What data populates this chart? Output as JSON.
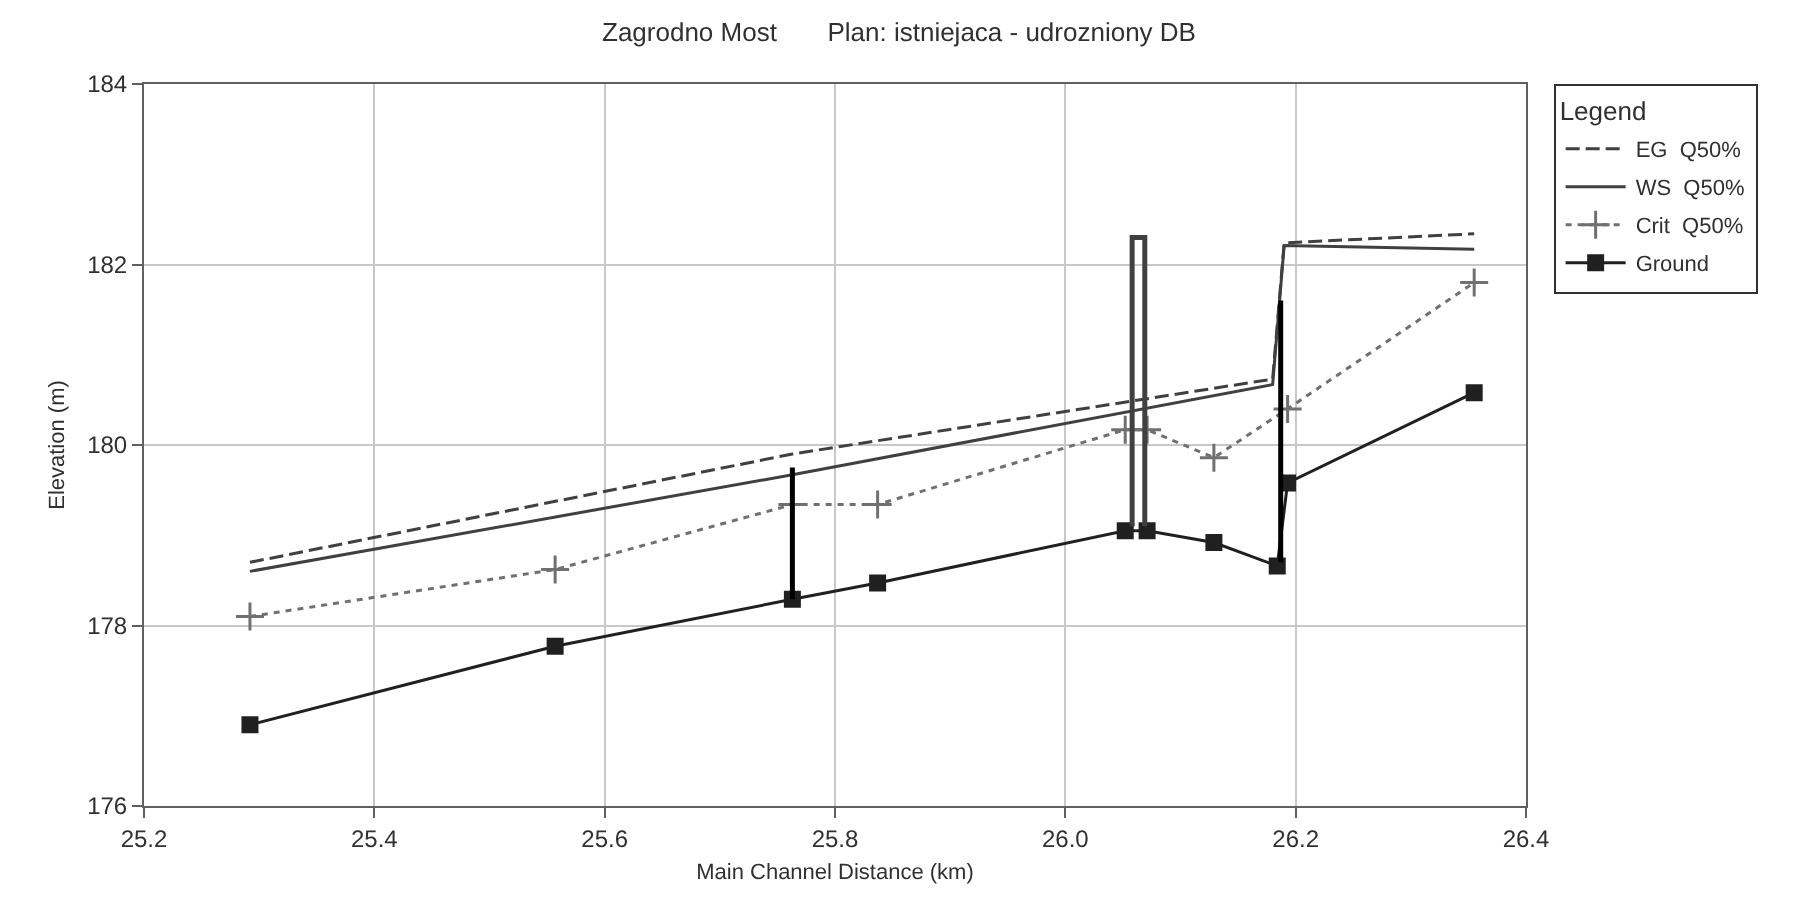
{
  "chart_data": {
    "type": "line",
    "title": "Zagrodno Most       Plan: istniejaca - udrozniony DB",
    "xlabel": "Main Channel Distance (km)",
    "ylabel": "Elevation (m)",
    "legend_title": "Legend",
    "xlim": [
      25.2,
      26.4
    ],
    "ylim": [
      176,
      184
    ],
    "xticks": [
      25.2,
      25.4,
      25.6,
      25.8,
      {
        "value": 26,
        "label": "26.0"
      },
      26.2,
      26.4
    ],
    "yticks": [
      176,
      178,
      180,
      182,
      184
    ],
    "grid": true,
    "legend": "top right",
    "series": [
      {
        "name": "EG  Q50%",
        "color": "#404040",
        "line_style": "dashed",
        "marker": "none",
        "x": [
          25.292,
          25.763,
          26.18,
          26.19,
          26.355
        ],
        "values": [
          178.7,
          179.9,
          180.73,
          182.24,
          182.34
        ]
      },
      {
        "name": "WS  Q50%",
        "color": "#404040",
        "line_style": "solid",
        "marker": "none",
        "x": [
          25.292,
          25.763,
          26.18,
          26.19,
          26.355
        ],
        "values": [
          178.6,
          179.67,
          180.67,
          182.21,
          182.17
        ]
      },
      {
        "name": "Crit  Q50%",
        "color": "#707070",
        "line_style": "dotted",
        "marker": "cross",
        "x": [
          25.292,
          25.557,
          25.763,
          25.837,
          26.052,
          26.071,
          26.129,
          26.193,
          26.355
        ],
        "values": [
          178.1,
          178.62,
          179.34,
          179.34,
          180.17,
          180.17,
          179.86,
          180.4,
          181.8
        ]
      },
      {
        "name": "Ground",
        "color": "#202020",
        "line_style": "solid",
        "marker": "square",
        "x": [
          25.292,
          25.557,
          25.763,
          25.837,
          26.052,
          26.071,
          26.129,
          26.184,
          26.193,
          26.355
        ],
        "values": [
          176.9,
          177.77,
          178.29,
          178.47,
          179.05,
          179.05,
          178.92,
          178.66,
          179.58,
          180.58
        ]
      },
      {
        "color": "#000000",
        "line_style": "solid",
        "marker": "none",
        "x": [
          25.763,
          25.763
        ],
        "values": [
          178.29,
          179.75
        ]
      },
      {
        "color": "#404040",
        "line_style": "solid",
        "marker": "none",
        "x": [
          26.058,
          26.058,
          26.069,
          26.069
        ],
        "values": [
          179.1,
          182.3,
          182.3,
          179.1
        ]
      },
      {
        "color": "#000000",
        "line_style": "solid",
        "marker": "none",
        "x": [
          26.187,
          26.187
        ],
        "values": [
          178.7,
          181.6
        ]
      }
    ]
  }
}
